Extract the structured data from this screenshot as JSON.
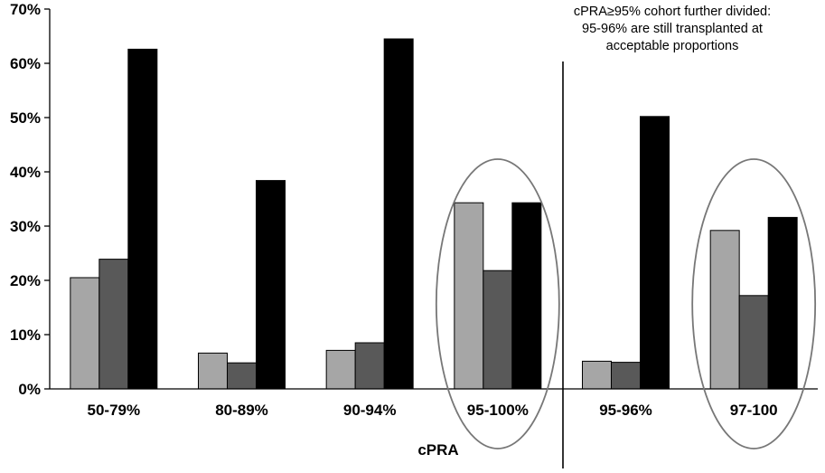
{
  "chart_data": {
    "type": "bar",
    "title": "",
    "xlabel": "cPRA",
    "ylabel": "",
    "ylim": [
      0,
      70
    ],
    "y_ticks": [
      "0%",
      "10%",
      "20%",
      "30%",
      "40%",
      "50%",
      "60%",
      "70%"
    ],
    "categories": [
      "50-79%",
      "80-89%",
      "90-94%",
      "95-100%",
      "95-96%",
      "97-100"
    ],
    "series": [
      {
        "color": "#a6a6a6",
        "values": [
          20.5,
          6.6,
          7.1,
          34.3,
          5.1,
          29.2
        ]
      },
      {
        "color": "#595959",
        "values": [
          23.9,
          4.8,
          8.5,
          21.8,
          4.9,
          17.2
        ]
      },
      {
        "color": "#000000",
        "values": [
          62.6,
          38.4,
          64.5,
          34.3,
          50.2,
          31.6
        ]
      }
    ],
    "annotation": [
      "cPRA≥95% cohort further divided:",
      "95-96% are still transplanted at",
      "acceptable proportions"
    ],
    "highlighted_categories": [
      "95-100%",
      "97-100"
    ],
    "legend": "none",
    "grid": false
  }
}
